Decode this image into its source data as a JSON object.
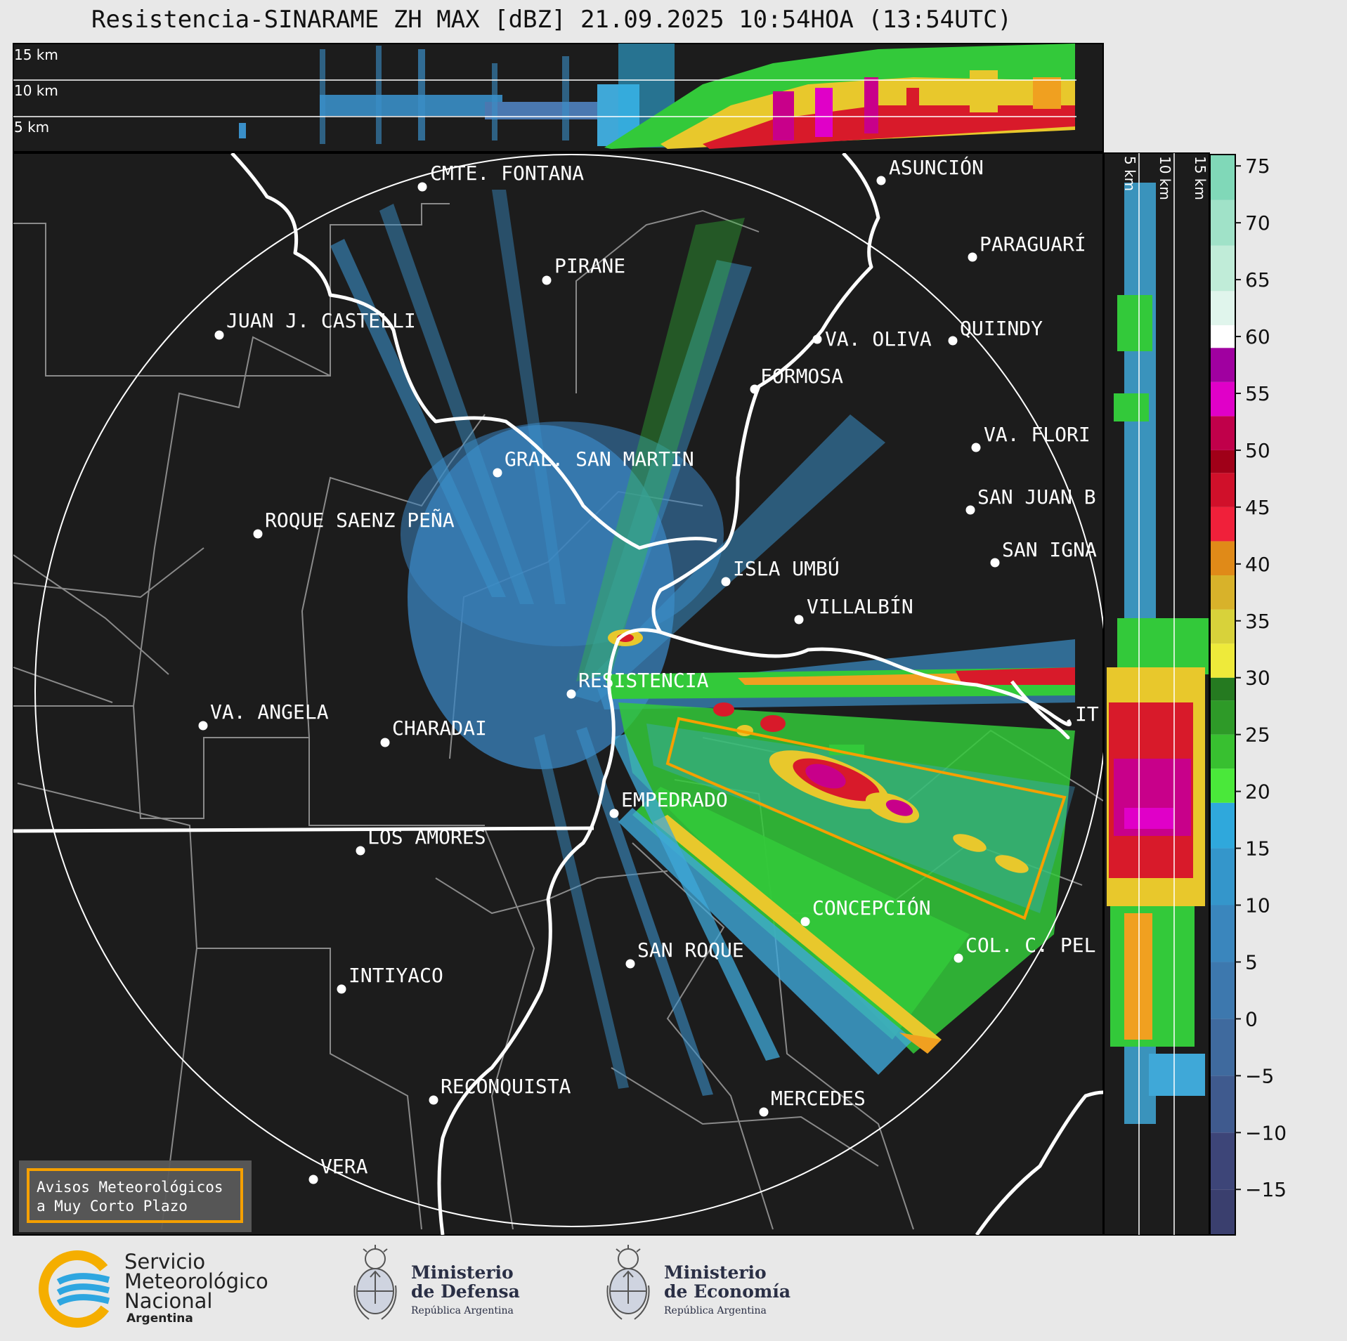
{
  "title": "Resistencia-SINARAME ZH MAX [dBZ] 21.09.2025 10:54HOA (13:54UTC)",
  "top_panel": {
    "height_labels": [
      "15 km",
      "10 km",
      "5 km"
    ]
  },
  "right_panel": {
    "height_labels": [
      "5 km",
      "10 km",
      "15 km"
    ]
  },
  "colorbar": {
    "unit": "dBZ",
    "tick_labels": [
      "75",
      "70",
      "65",
      "60",
      "55",
      "50",
      "45",
      "40",
      "35",
      "30",
      "25",
      "20",
      "15",
      "10",
      "5",
      "0",
      "−5",
      "−10",
      "−15"
    ],
    "range": [
      -19,
      76
    ]
  },
  "cities": [
    {
      "name": "CMTE. FONTANA"
    },
    {
      "name": "ASUNCIÓN"
    },
    {
      "name": "PIRANE"
    },
    {
      "name": "PARAGUARÍ"
    },
    {
      "name": "JUAN J. CASTELLI"
    },
    {
      "name": "VA. OLIVA"
    },
    {
      "name": "QUIINDY"
    },
    {
      "name": "FORMOSA"
    },
    {
      "name": "VA. FLORI"
    },
    {
      "name": "GRAL. SAN MARTIN"
    },
    {
      "name": "SAN JUAN B"
    },
    {
      "name": "ROQUE SAENZ PEÑA"
    },
    {
      "name": "SAN IGNA"
    },
    {
      "name": "ISLA UMBÚ"
    },
    {
      "name": "VILLALBÍN"
    },
    {
      "name": "RESISTENCIA"
    },
    {
      "name": "VA. ANGELA"
    },
    {
      "name": "CHARADAI"
    },
    {
      "name": "EMPEDRADO"
    },
    {
      "name": "LOS AMORES"
    },
    {
      "name": "CONCEPCIÓN"
    },
    {
      "name": "SAN ROQUE"
    },
    {
      "name": "COL. C. PEL"
    },
    {
      "name": "INTIYACO"
    },
    {
      "name": "RECONQUISTA"
    },
    {
      "name": "MERCEDES"
    },
    {
      "name": "VERA"
    },
    {
      "name": "IT"
    }
  ],
  "legend": {
    "line1": "Avisos Meteorológicos",
    "line2": "a Muy Corto Plazo",
    "color": "#f5a000"
  },
  "footer": {
    "smn_name_1": "Servicio",
    "smn_name_2": "Meteorológico",
    "smn_name_3": "Nacional",
    "smn_country": "Argentina",
    "defensa_1": "Ministerio",
    "defensa_2": "de Defensa",
    "defensa_sub": "República Argentina",
    "economia_1": "Ministerio",
    "economia_2": "de Economía",
    "economia_sub": "República Argentina"
  },
  "colors": {
    "map_bg": "#1c1c1c",
    "range_ring": "#ffffff",
    "borders": "#ffffff",
    "departments": "#8a8a8a",
    "warning_polygon": "#f5a000"
  }
}
